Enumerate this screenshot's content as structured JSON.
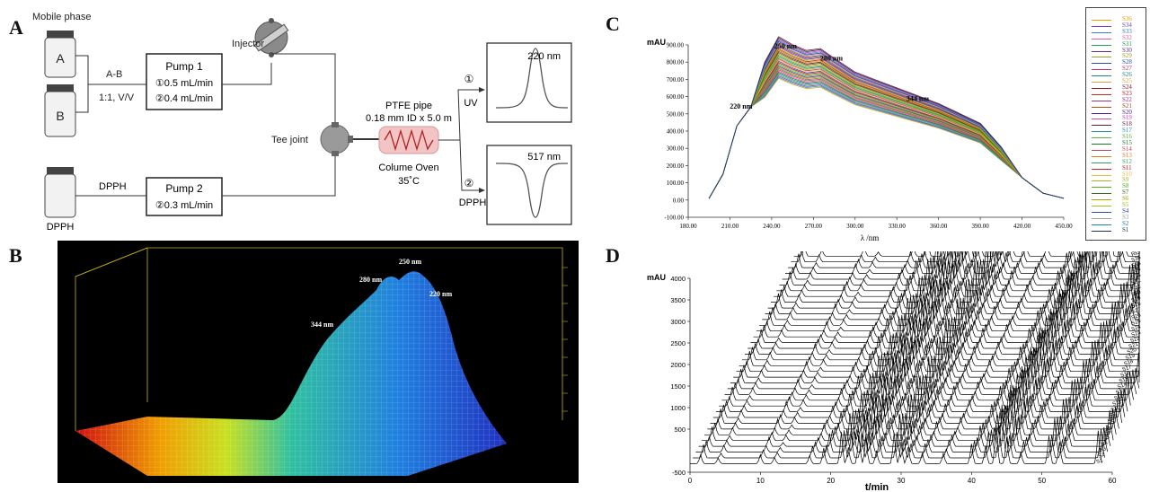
{
  "panels": {
    "A": {
      "label": "A",
      "mobile_phase_label": "Mobile phase",
      "bottle_a": "A",
      "bottle_b": "B",
      "mix_label": "A-B",
      "ratio_label": "1:1, V/V",
      "pump1_title": "Pump 1",
      "pump1_flow1": "①0.5 mL/min",
      "pump1_flow2": "②0.4 mL/min",
      "injector_label": "Injector",
      "tee_label": "Tee joint",
      "pipe_label_1": "PTFE pipe",
      "pipe_label_2": "0.18 mm ID x 5.0 m",
      "oven_label_1": "Colume Oven",
      "oven_label_2": "35˚C",
      "dpph_bottle_label": "DPPH",
      "dpph_line_label": "DPPH",
      "pump2_title": "Pump 2",
      "pump2_flow": "②0.3 mL/min",
      "uv_marker": "①",
      "uv_label": "UV",
      "dpph_marker": "②",
      "dpph_out_label": "DPPH",
      "uv_wavelength": "220 nm",
      "dpph_wavelength": "517 nm"
    },
    "B": {
      "label": "B",
      "peak_labels": [
        "250 nm",
        "280 nm",
        "220 nm",
        "344 nm"
      ]
    },
    "C": {
      "label": "C"
    },
    "D": {
      "label": "D"
    }
  },
  "chart_data": [
    {
      "id": "C",
      "type": "line",
      "ylabel": "mAU",
      "xlabel": "λ /nm",
      "xlim": [
        180,
        450
      ],
      "ylim": [
        -100,
        900
      ],
      "x_ticks": [
        "180.00",
        "210.00",
        "240.00",
        "270.00",
        "300.00",
        "330.00",
        "360.00",
        "390.00",
        "420.00",
        "450.00"
      ],
      "y_ticks": [
        "-100.00",
        "0.00",
        "100.00",
        "200.00",
        "300.00",
        "400.00",
        "500.00",
        "600.00",
        "700.00",
        "800.00",
        "900.00"
      ],
      "annotations": [
        {
          "text": "220 nm",
          "x": 218,
          "y": 530
        },
        {
          "text": "250 nm",
          "x": 250,
          "y": 880
        },
        {
          "text": "280 nm",
          "x": 283,
          "y": 810
        },
        {
          "text": "344 nm",
          "x": 345,
          "y": 575
        }
      ],
      "x": [
        195,
        205,
        215,
        225,
        235,
        245,
        255,
        265,
        275,
        285,
        300,
        315,
        330,
        345,
        360,
        375,
        390,
        405,
        420,
        435,
        450
      ],
      "template_values": [
        10,
        150,
        430,
        540,
        700,
        830,
        790,
        760,
        770,
        720,
        650,
        610,
        570,
        530,
        490,
        440,
        390,
        270,
        130,
        40,
        10
      ],
      "series_names": [
        "S36",
        "S34",
        "S33",
        "S32",
        "S31",
        "S30",
        "S29",
        "S28",
        "S27",
        "S26",
        "S25",
        "S24",
        "S23",
        "S22",
        "S21",
        "S20",
        "S19",
        "S18",
        "S17",
        "S16",
        "S15",
        "S14",
        "S13",
        "S12",
        "S11",
        "S10",
        "S9",
        "S8",
        "S7",
        "S6",
        "S5",
        "S4",
        "S3",
        "S2",
        "S1"
      ],
      "series_colors": [
        "#e8a000",
        "#7a3fbf",
        "#3a7bd5",
        "#e85a9a",
        "#20a050",
        "#6a2a8a",
        "#9aa020",
        "#2a4ab0",
        "#c03070",
        "#1a8a8a",
        "#e0a040",
        "#8a1a2a",
        "#d02020",
        "#a0308a",
        "#b04a20",
        "#502090",
        "#d040b0",
        "#701a3a",
        "#2090d0",
        "#60b040",
        "#1a7a2a",
        "#d04060",
        "#e07a20",
        "#3aa060",
        "#c01a1a",
        "#e8c040",
        "#b0b020",
        "#50b020",
        "#406020",
        "#b0a000",
        "#a0c020",
        "#3050a0",
        "#a0a0a0",
        "#2080b0",
        "#203060"
      ]
    },
    {
      "id": "D",
      "type": "line",
      "ylabel": "mAU",
      "xlabel": "t/min",
      "xlim": [
        0,
        60
      ],
      "ylim": [
        -500,
        4000
      ],
      "x_ticks": [
        "0",
        "10",
        "20",
        "30",
        "40",
        "50",
        "60"
      ],
      "y_ticks": [
        "-500",
        "500",
        "1000",
        "1500",
        "2000",
        "2500",
        "3000",
        "3500",
        "4000"
      ],
      "reference_label": "REF",
      "sample_labels": [
        "S36",
        "S35",
        "S34",
        "S33",
        "S32",
        "S31",
        "S30",
        "S29",
        "S28",
        "S27",
        "S26",
        "S25",
        "S24",
        "S23",
        "S22",
        "S21",
        "S20",
        "S19",
        "S18",
        "S17",
        "S16",
        "S15",
        "S14",
        "S13",
        "S12",
        "S11",
        "S10",
        "S9",
        "S8",
        "S7",
        "S6",
        "S5",
        "S4",
        "S3",
        "S2",
        "S1"
      ],
      "peak_times": [
        1.5,
        4,
        10,
        12,
        17,
        19,
        21.5,
        22.5,
        24,
        25,
        26.5,
        29,
        30,
        31,
        33,
        36,
        40,
        42,
        43.5,
        45,
        47,
        51,
        52.5,
        58
      ],
      "peak_heights": [
        350,
        180,
        250,
        150,
        280,
        450,
        800,
        600,
        900,
        700,
        500,
        1000,
        600,
        400,
        350,
        300,
        500,
        650,
        1200,
        700,
        450,
        900,
        600,
        800
      ]
    }
  ]
}
